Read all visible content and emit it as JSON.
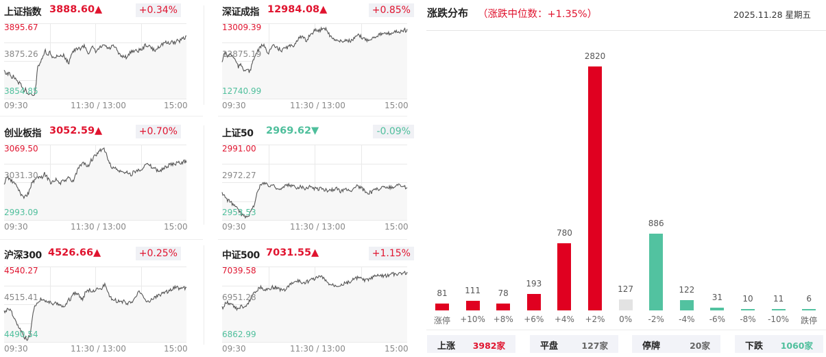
{
  "indices": [
    {
      "name": "上证指数",
      "price": "3888.60",
      "arrow": "▲",
      "pct": "+0.34%",
      "dir": "up",
      "ymax": "3895.67",
      "ymid": "3875.26",
      "ymin": "3854.85"
    },
    {
      "name": "深证成指",
      "price": "12984.08",
      "arrow": "▲",
      "pct": "+0.85%",
      "dir": "up",
      "ymax": "13009.39",
      "ymid": "12875.19",
      "ymin": "12740.99"
    },
    {
      "name": "创业板指",
      "price": "3052.59",
      "arrow": "▲",
      "pct": "+0.70%",
      "dir": "up",
      "ymax": "3069.50",
      "ymid": "3031.30",
      "ymin": "2993.09"
    },
    {
      "name": "上证50",
      "price": "2969.62",
      "arrow": "▼",
      "pct": "-0.09%",
      "dir": "down",
      "ymax": "2991.00",
      "ymid": "2972.27",
      "ymin": "2953.53"
    },
    {
      "name": "沪深300",
      "price": "4526.66",
      "arrow": "▲",
      "pct": "+0.25%",
      "dir": "up",
      "ymax": "4540.27",
      "ymid": "4515.41",
      "ymin": "4490.54"
    },
    {
      "name": "中证500",
      "price": "7031.55",
      "arrow": "▲",
      "pct": "+1.15%",
      "dir": "up",
      "ymax": "7039.58",
      "ymid": "6951.28",
      "ymin": "6862.99"
    }
  ],
  "time_axis": {
    "start": "09:30",
    "mid": "11:30 / 13:00",
    "end": "15:00"
  },
  "distribution": {
    "title": "涨跌分布",
    "subtitle": "（涨跌中位数：+1.35%）",
    "date": "2025.11.28 星期五",
    "colors": {
      "up": "#e00020",
      "flat": "#e3e3e3",
      "down": "#52c2a0"
    },
    "summary": [
      {
        "label": "上涨",
        "value": "3982家",
        "color": "#e0142f"
      },
      {
        "label": "平盘",
        "value": "127家",
        "color": "#666666"
      },
      {
        "label": "停牌",
        "value": "20家",
        "color": "#666666"
      },
      {
        "label": "下跌",
        "value": "1060家",
        "color": "#4fbf9c"
      }
    ]
  },
  "chart_data": [
    {
      "type": "bar",
      "title": "涨跌分布（涨跌中位数：+1.35%）",
      "categories": [
        "涨停",
        "+10%",
        "+8%",
        "+6%",
        "+4%",
        "+2%",
        "0%",
        "-2%",
        "-4%",
        "-6%",
        "-8%",
        "-10%",
        "跌停"
      ],
      "values": [
        81,
        111,
        78,
        193,
        780,
        2820,
        127,
        886,
        122,
        31,
        10,
        11,
        6
      ],
      "colors": [
        "up",
        "up",
        "up",
        "up",
        "up",
        "up",
        "flat",
        "down",
        "down",
        "down",
        "down",
        "down",
        "down"
      ],
      "xlabel": "",
      "ylabel": "",
      "ylim": [
        0,
        2820
      ],
      "grid": false,
      "legend": "none"
    },
    {
      "type": "line",
      "title": "上证指数",
      "x": [
        "09:30",
        "11:30 / 13:00",
        "15:00"
      ],
      "ylim": [
        3854.85,
        3895.67
      ],
      "ymid": 3875.26,
      "last": 3888.6,
      "change_pct": 0.34
    },
    {
      "type": "line",
      "title": "深证成指",
      "x": [
        "09:30",
        "11:30 / 13:00",
        "15:00"
      ],
      "ylim": [
        12740.99,
        13009.39
      ],
      "ymid": 12875.19,
      "last": 12984.08,
      "change_pct": 0.85
    },
    {
      "type": "line",
      "title": "创业板指",
      "x": [
        "09:30",
        "11:30 / 13:00",
        "15:00"
      ],
      "ylim": [
        2993.09,
        3069.5
      ],
      "ymid": 3031.3,
      "last": 3052.59,
      "change_pct": 0.7
    },
    {
      "type": "line",
      "title": "上证50",
      "x": [
        "09:30",
        "11:30 / 13:00",
        "15:00"
      ],
      "ylim": [
        2953.53,
        2991.0
      ],
      "ymid": 2972.27,
      "last": 2969.62,
      "change_pct": -0.09
    },
    {
      "type": "line",
      "title": "沪深300",
      "x": [
        "09:30",
        "11:30 / 13:00",
        "15:00"
      ],
      "ylim": [
        4490.54,
        4540.27
      ],
      "ymid": 4515.41,
      "last": 4526.66,
      "change_pct": 0.25
    },
    {
      "type": "line",
      "title": "中证500",
      "x": [
        "09:30",
        "11:30 / 13:00",
        "15:00"
      ],
      "ylim": [
        6862.99,
        7039.58
      ],
      "ymid": 6951.28,
      "last": 7031.55,
      "change_pct": 1.15
    }
  ]
}
